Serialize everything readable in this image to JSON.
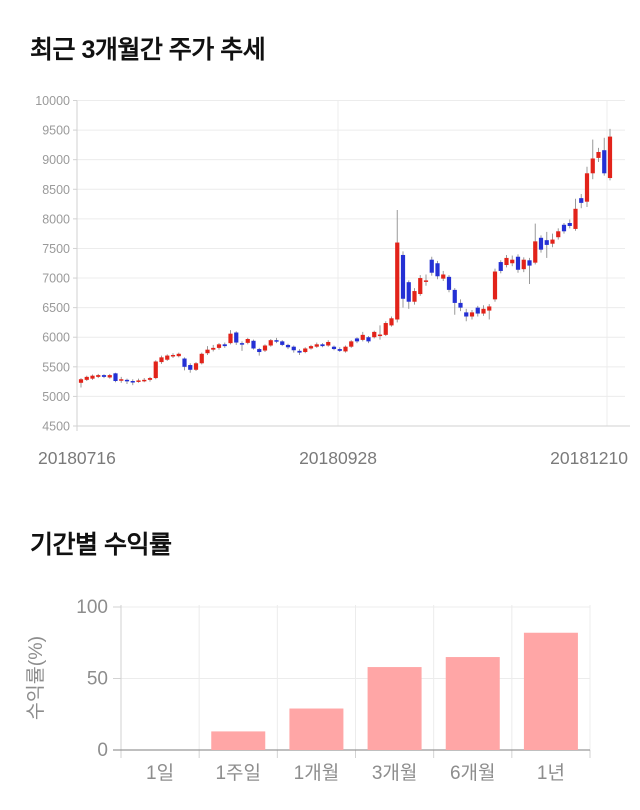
{
  "chart_data": [
    {
      "type": "candlestick",
      "title": "최근 3개월간 주가 추세",
      "x_tick_labels": [
        "20180716",
        "20180928",
        "20181210"
      ],
      "y_ticks": [
        4500,
        5000,
        5500,
        6000,
        6500,
        7000,
        7500,
        8000,
        8500,
        9000,
        9500,
        10000
      ],
      "ylim": [
        4500,
        10000
      ],
      "grid": true,
      "up_color": "#e2231a",
      "down_color": "#2430d4",
      "wick_color": "#999999",
      "candles_format": "[open, high, low, close]",
      "candles": [
        [
          5230,
          5310,
          5150,
          5290
        ],
        [
          5280,
          5350,
          5260,
          5330
        ],
        [
          5300,
          5370,
          5280,
          5350
        ],
        [
          5330,
          5380,
          5310,
          5360
        ],
        [
          5360,
          5375,
          5310,
          5330
        ],
        [
          5320,
          5380,
          5300,
          5360
        ],
        [
          5390,
          5400,
          5240,
          5260
        ],
        [
          5270,
          5330,
          5230,
          5290
        ],
        [
          5280,
          5300,
          5210,
          5260
        ],
        [
          5260,
          5290,
          5190,
          5250
        ],
        [
          5250,
          5300,
          5230,
          5270
        ],
        [
          5270,
          5310,
          5240,
          5280
        ],
        [
          5280,
          5330,
          5250,
          5310
        ],
        [
          5310,
          5610,
          5290,
          5590
        ],
        [
          5580,
          5690,
          5550,
          5660
        ],
        [
          5620,
          5710,
          5600,
          5690
        ],
        [
          5680,
          5730,
          5650,
          5700
        ],
        [
          5680,
          5740,
          5660,
          5720
        ],
        [
          5640,
          5660,
          5440,
          5500
        ],
        [
          5530,
          5560,
          5400,
          5450
        ],
        [
          5450,
          5580,
          5430,
          5560
        ],
        [
          5560,
          5740,
          5540,
          5720
        ],
        [
          5730,
          5850,
          5700,
          5790
        ],
        [
          5790,
          5870,
          5760,
          5820
        ],
        [
          5820,
          5900,
          5790,
          5880
        ],
        [
          5880,
          5910,
          5820,
          5850
        ],
        [
          5900,
          6120,
          5880,
          6060
        ],
        [
          6080,
          6100,
          5870,
          5910
        ],
        [
          5900,
          5930,
          5770,
          5890
        ],
        [
          5905,
          5990,
          5880,
          5970
        ],
        [
          5940,
          5960,
          5790,
          5810
        ],
        [
          5800,
          5820,
          5690,
          5750
        ],
        [
          5775,
          5880,
          5750,
          5860
        ],
        [
          5860,
          5970,
          5840,
          5950
        ],
        [
          5950,
          5990,
          5900,
          5930
        ],
        [
          5930,
          5950,
          5850,
          5870
        ],
        [
          5870,
          5890,
          5800,
          5830
        ],
        [
          5840,
          5860,
          5740,
          5780
        ],
        [
          5770,
          5800,
          5700,
          5740
        ],
        [
          5750,
          5830,
          5730,
          5810
        ],
        [
          5810,
          5870,
          5790,
          5850
        ],
        [
          5840,
          5910,
          5820,
          5880
        ],
        [
          5880,
          5900,
          5830,
          5850
        ],
        [
          5860,
          5950,
          5840,
          5920
        ],
        [
          5840,
          5860,
          5780,
          5800
        ],
        [
          5800,
          5830,
          5750,
          5770
        ],
        [
          5760,
          5860,
          5740,
          5840
        ],
        [
          5840,
          5950,
          5820,
          5930
        ],
        [
          5980,
          6000,
          5900,
          5930
        ],
        [
          5955,
          6090,
          5930,
          6040
        ],
        [
          6000,
          6020,
          5900,
          5930
        ],
        [
          6000,
          6110,
          5980,
          6090
        ],
        [
          6045,
          6200,
          5960,
          6045
        ],
        [
          6040,
          6270,
          6020,
          6240
        ],
        [
          6200,
          6350,
          6180,
          6320
        ],
        [
          6300,
          8150,
          6250,
          7600
        ],
        [
          7390,
          7450,
          6500,
          6650
        ],
        [
          6930,
          6960,
          6480,
          6600
        ],
        [
          6600,
          6830,
          6550,
          6780
        ],
        [
          6730,
          7050,
          6700,
          7000
        ],
        [
          6950,
          7060,
          6870,
          6960
        ],
        [
          7310,
          7360,
          7040,
          7090
        ],
        [
          7250,
          7290,
          6980,
          7030
        ],
        [
          6990,
          7120,
          6950,
          7060
        ],
        [
          7020,
          7050,
          6760,
          6800
        ],
        [
          6800,
          6830,
          6380,
          6580
        ],
        [
          6580,
          6640,
          6440,
          6500
        ],
        [
          6420,
          6480,
          6270,
          6350
        ],
        [
          6350,
          6460,
          6300,
          6420
        ],
        [
          6500,
          6530,
          6350,
          6400
        ],
        [
          6400,
          6540,
          6360,
          6480
        ],
        [
          6450,
          6560,
          6300,
          6520
        ],
        [
          6640,
          7160,
          6600,
          7110
        ],
        [
          7270,
          7300,
          7080,
          7120
        ],
        [
          7220,
          7390,
          7180,
          7340
        ],
        [
          7250,
          7380,
          7200,
          7310
        ],
        [
          7360,
          7400,
          7090,
          7140
        ],
        [
          7150,
          7350,
          7100,
          7310
        ],
        [
          7300,
          7340,
          6900,
          7210
        ],
        [
          7260,
          7920,
          7230,
          7620
        ],
        [
          7680,
          7720,
          7430,
          7480
        ],
        [
          7640,
          7780,
          7340,
          7560
        ],
        [
          7580,
          7750,
          7520,
          7650
        ],
        [
          7690,
          7840,
          7650,
          7790
        ],
        [
          7900,
          7930,
          7750,
          7790
        ],
        [
          7930,
          7990,
          7840,
          7880
        ],
        [
          7830,
          8340,
          7800,
          8170
        ],
        [
          8350,
          8420,
          8180,
          8270
        ],
        [
          8290,
          8880,
          8200,
          8770
        ],
        [
          8770,
          9340,
          8670,
          9020
        ],
        [
          9030,
          9200,
          8960,
          9130
        ],
        [
          9160,
          9370,
          8730,
          8770
        ],
        [
          8690,
          9520,
          8650,
          9390
        ]
      ]
    },
    {
      "type": "bar",
      "title": "기간별 수익률",
      "ylabel": "수익률(%)",
      "categories": [
        "1일",
        "1주일",
        "1개월",
        "3개월",
        "6개월",
        "1년"
      ],
      "values": [
        0,
        13,
        29,
        58,
        65,
        82
      ],
      "y_ticks": [
        0,
        50,
        100
      ],
      "ylim": [
        0,
        100
      ],
      "grid": true,
      "bar_color": "#ffa6a6"
    }
  ],
  "colors": {
    "grid_line": "#ececec",
    "axis_line": "#d2d2d2",
    "axis_line_dark": "#999999",
    "tick_label": "#9a9a9a",
    "date_label": "#7a7a7a",
    "bar_tick_label": "#8d8d8d"
  }
}
